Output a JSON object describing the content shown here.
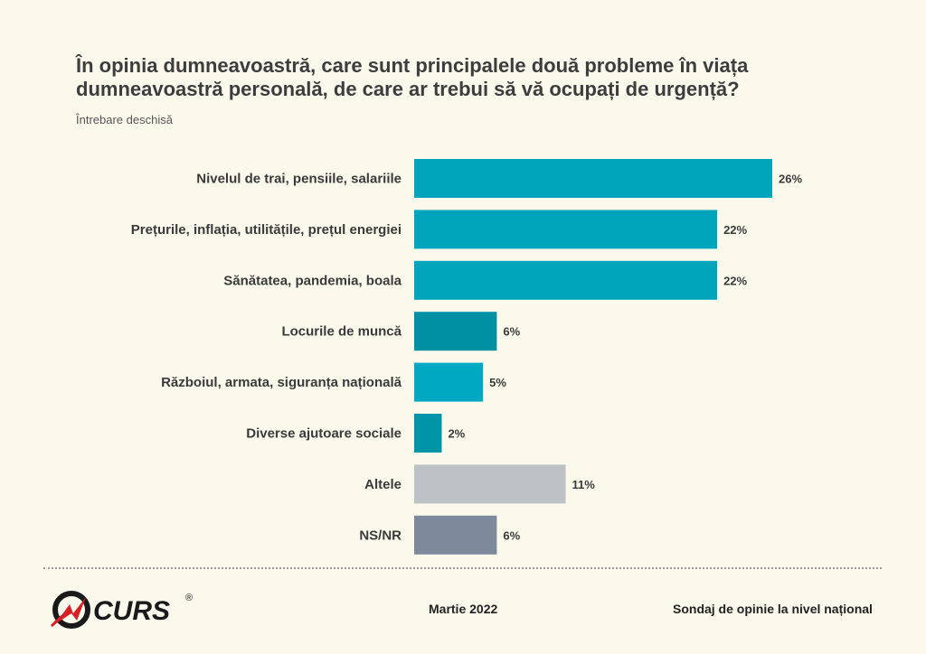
{
  "chart_data": {
    "type": "bar",
    "orientation": "horizontal",
    "title": "În opinia dumneavoastră, care sunt principalele două probleme în viața dumneavoastră personală, de care ar trebui să vă ocupați de urgență?",
    "subtitle": "Întrebare deschisă",
    "categories": [
      "Nivelul de trai, pensiile, salariile",
      "Prețurile, inflația, utilitățile, prețul energiei",
      "Sănătatea, pandemia, boala",
      "Locurile de muncă",
      "Războiul, armata, siguranța națională",
      "Diverse ajutoare sociale",
      "Altele",
      "NS/NR"
    ],
    "values": [
      26,
      22,
      22,
      6,
      5,
      2,
      11,
      6
    ],
    "value_labels": [
      "26%",
      "22%",
      "22%",
      "6%",
      "5%",
      "2%",
      "11%",
      "6%"
    ],
    "bar_colors": [
      "#00a5bb",
      "#00a5bb",
      "#00a5bb",
      "#0090a4",
      "#00a9c1",
      "#0094a8",
      "#bdc2c7",
      "#7c8a9c"
    ],
    "xlim": [
      0,
      26
    ],
    "grid": false
  },
  "footer": {
    "logo_text": "CURS",
    "logo_mark": "®",
    "date": "Martie 2022",
    "source": "Sondaj de opinie la nivel național"
  }
}
